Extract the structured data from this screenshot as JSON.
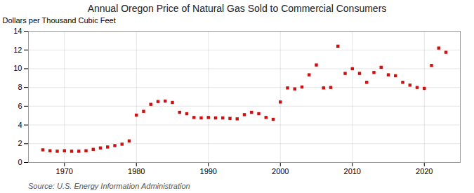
{
  "chart_data": {
    "type": "scatter",
    "title": "Annual Oregon Price of Natural Gas Sold to Commercial Consumers",
    "ylabel": "Dollars per Thousand Cubic Feet",
    "source": "Source: U.S. Energy Information Administration",
    "color": "#cc1111",
    "marker": "square",
    "grid": true,
    "xlim": [
      1965,
      2025
    ],
    "xticks": [
      1970,
      1980,
      1990,
      2000,
      2010,
      2020
    ],
    "ylim": [
      0,
      14
    ],
    "yticks": [
      0,
      2,
      4,
      6,
      8,
      10,
      12,
      14
    ],
    "x": [
      1967,
      1968,
      1969,
      1970,
      1971,
      1972,
      1973,
      1974,
      1975,
      1976,
      1977,
      1978,
      1979,
      1980,
      1981,
      1982,
      1983,
      1984,
      1985,
      1986,
      1987,
      1988,
      1989,
      1990,
      1991,
      1992,
      1993,
      1994,
      1995,
      1996,
      1997,
      1998,
      1999,
      2000,
      2001,
      2002,
      2003,
      2004,
      2005,
      2006,
      2007,
      2008,
      2009,
      2010,
      2011,
      2012,
      2013,
      2014,
      2015,
      2016,
      2017,
      2018,
      2019,
      2020,
      2021,
      2022,
      2023
    ],
    "values": [
      1.35,
      1.25,
      1.2,
      1.25,
      1.2,
      1.2,
      1.25,
      1.4,
      1.55,
      1.65,
      1.8,
      1.95,
      2.3,
      5.05,
      5.45,
      6.2,
      6.5,
      6.55,
      6.4,
      5.35,
      5.2,
      4.8,
      4.75,
      4.8,
      4.75,
      4.75,
      4.7,
      4.65,
      5.1,
      5.35,
      5.2,
      4.8,
      4.6,
      6.45,
      7.95,
      7.85,
      8.05,
      9.35,
      10.4,
      7.95,
      8.0,
      12.4,
      9.5,
      10.0,
      9.5,
      8.55,
      9.6,
      10.15,
      9.35,
      9.25,
      8.55,
      8.25,
      8.0,
      7.9,
      10.35,
      12.2,
      11.75
    ]
  }
}
